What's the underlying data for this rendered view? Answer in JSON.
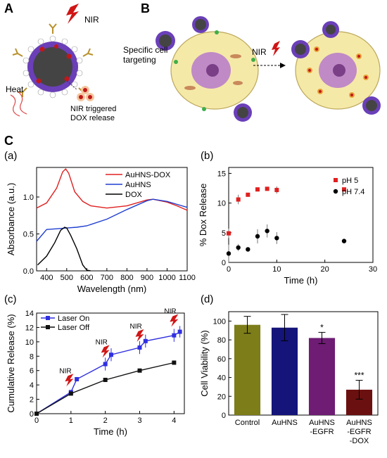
{
  "figure": {
    "panel_a_label": "A",
    "panel_b_label": "B",
    "panel_c_label": "C",
    "schematic_a": {
      "nir_label": "NIR",
      "heat_label": "Heat",
      "release_label_line1": "NIR triggered",
      "release_label_line2": "DOX release"
    },
    "schematic_b": {
      "targeting_line1": "Specific cell",
      "targeting_line2": "targeting",
      "nir_label": "NIR"
    }
  },
  "chart_data": [
    {
      "id": "a",
      "panel_label": "(a)",
      "type": "line",
      "xlabel": "Wavelength (nm)",
      "ylabel": "Absorbance (a.u.)",
      "xlim": [
        350,
        1100
      ],
      "ylim": [
        0,
        1.4
      ],
      "xticks": [
        "400",
        "500",
        "600",
        "700",
        "800",
        "900",
        "1000",
        "1100"
      ],
      "yticks": [
        "0.0",
        "0.5",
        "1.0"
      ],
      "legend_position": "top-right",
      "series": [
        {
          "name": "AuHNS-DOX",
          "color": "#e02020",
          "x": [
            350,
            400,
            450,
            480,
            495,
            510,
            540,
            580,
            620,
            700,
            800,
            900,
            930,
            1000,
            1050,
            1100
          ],
          "y": [
            0.85,
            0.92,
            1.12,
            1.34,
            1.38,
            1.32,
            1.07,
            0.94,
            0.88,
            0.85,
            0.88,
            0.96,
            0.97,
            0.93,
            0.88,
            0.82
          ]
        },
        {
          "name": "AuHNS",
          "color": "#1f3fcf",
          "x": [
            350,
            400,
            450,
            500,
            550,
            600,
            700,
            800,
            900,
            930,
            1000,
            1050,
            1100
          ],
          "y": [
            0.4,
            0.56,
            0.57,
            0.58,
            0.59,
            0.61,
            0.7,
            0.83,
            0.95,
            0.97,
            0.94,
            0.9,
            0.86
          ]
        },
        {
          "name": "DOX",
          "color": "#000000",
          "x": [
            355,
            400,
            440,
            470,
            490,
            500,
            520,
            550,
            580,
            600,
            620
          ],
          "y": [
            0.08,
            0.2,
            0.38,
            0.55,
            0.59,
            0.58,
            0.48,
            0.3,
            0.08,
            0.01,
            0.0
          ]
        }
      ]
    },
    {
      "id": "b",
      "panel_label": "(b)",
      "type": "scatter",
      "xlabel": "Time (h)",
      "ylabel": "% Dox Release",
      "xlim": [
        0,
        30
      ],
      "ylim": [
        0,
        16
      ],
      "xticks": [
        "0",
        "10",
        "20",
        "30"
      ],
      "yticks": [
        "0",
        "5",
        "10",
        "15"
      ],
      "legend_position": "top-right",
      "series": [
        {
          "name": "pH 5",
          "color": "#e02020",
          "marker": "square",
          "x": [
            0,
            2,
            4,
            6,
            8,
            10,
            24
          ],
          "y": [
            4.9,
            10.6,
            11.4,
            12.3,
            12.4,
            12.2,
            12.3
          ],
          "err": [
            0.8,
            0.8,
            0.3,
            0.3,
            0.3,
            0.6,
            0.0
          ]
        },
        {
          "name": "pH 7.4",
          "color": "#000000",
          "marker": "circle",
          "x": [
            0,
            2,
            4,
            6,
            8,
            10,
            24
          ],
          "y": [
            1.5,
            2.5,
            2.2,
            4.4,
            5.3,
            4.1,
            3.6
          ],
          "err": [
            1.5,
            0.6,
            0.3,
            1.2,
            1.1,
            1.0,
            0.0
          ]
        }
      ]
    },
    {
      "id": "c",
      "panel_label": "(c)",
      "type": "line",
      "xlabel": "Time (h)",
      "ylabel": "Cumulative Release (%)",
      "xlim": [
        0,
        4.3
      ],
      "ylim": [
        0,
        14
      ],
      "xticks": [
        "0",
        "1",
        "2",
        "3",
        "4"
      ],
      "yticks": [
        "0",
        "2",
        "4",
        "6",
        "8",
        "10",
        "12",
        "14"
      ],
      "legend_position": "top-left",
      "annotations": [
        {
          "text": "NIR",
          "x": 0.95,
          "y": 3.5
        },
        {
          "text": "NIR",
          "x": 2.0,
          "y": 7.5
        },
        {
          "text": "NIR",
          "x": 3.0,
          "y": 9.7
        },
        {
          "text": "NIR",
          "x": 4.0,
          "y": 11.8
        }
      ],
      "series": [
        {
          "name": "Laser On",
          "color": "#2f2fe0",
          "marker": "square",
          "x": [
            0,
            1,
            1.17,
            2,
            2.17,
            3,
            3.17,
            4,
            4.17
          ],
          "y": [
            0,
            3.0,
            4.8,
            6.9,
            8.2,
            9.2,
            10.1,
            10.9,
            11.4
          ],
          "err": [
            0.2,
            0.3,
            0.3,
            0.9,
            0.9,
            0.9,
            0.9,
            0.9,
            0.8
          ]
        },
        {
          "name": "Laser Off",
          "color": "#111111",
          "marker": "square",
          "x": [
            0,
            1,
            2,
            3,
            4
          ],
          "y": [
            0,
            2.8,
            4.7,
            6.0,
            7.1
          ],
          "err": [
            0,
            0,
            0,
            0,
            0
          ]
        }
      ]
    },
    {
      "id": "d",
      "panel_label": "(d)",
      "type": "bar",
      "ylabel": "Cell Viability (%)",
      "ylim": [
        0,
        110
      ],
      "yticks": [
        "0",
        "20",
        "40",
        "60",
        "80",
        "100"
      ],
      "categories": [
        "Control",
        "AuHNS",
        "AuHNS\n-EGFR",
        "AuHNS\n-EGFR\n-DOX"
      ],
      "values": [
        96,
        93,
        82,
        27
      ],
      "err": [
        9,
        14,
        6,
        10
      ],
      "colors": [
        "#7d7d1a",
        "#14147a",
        "#6e1c74",
        "#6b1010"
      ],
      "significance": [
        "",
        "",
        "*",
        "***"
      ]
    }
  ]
}
